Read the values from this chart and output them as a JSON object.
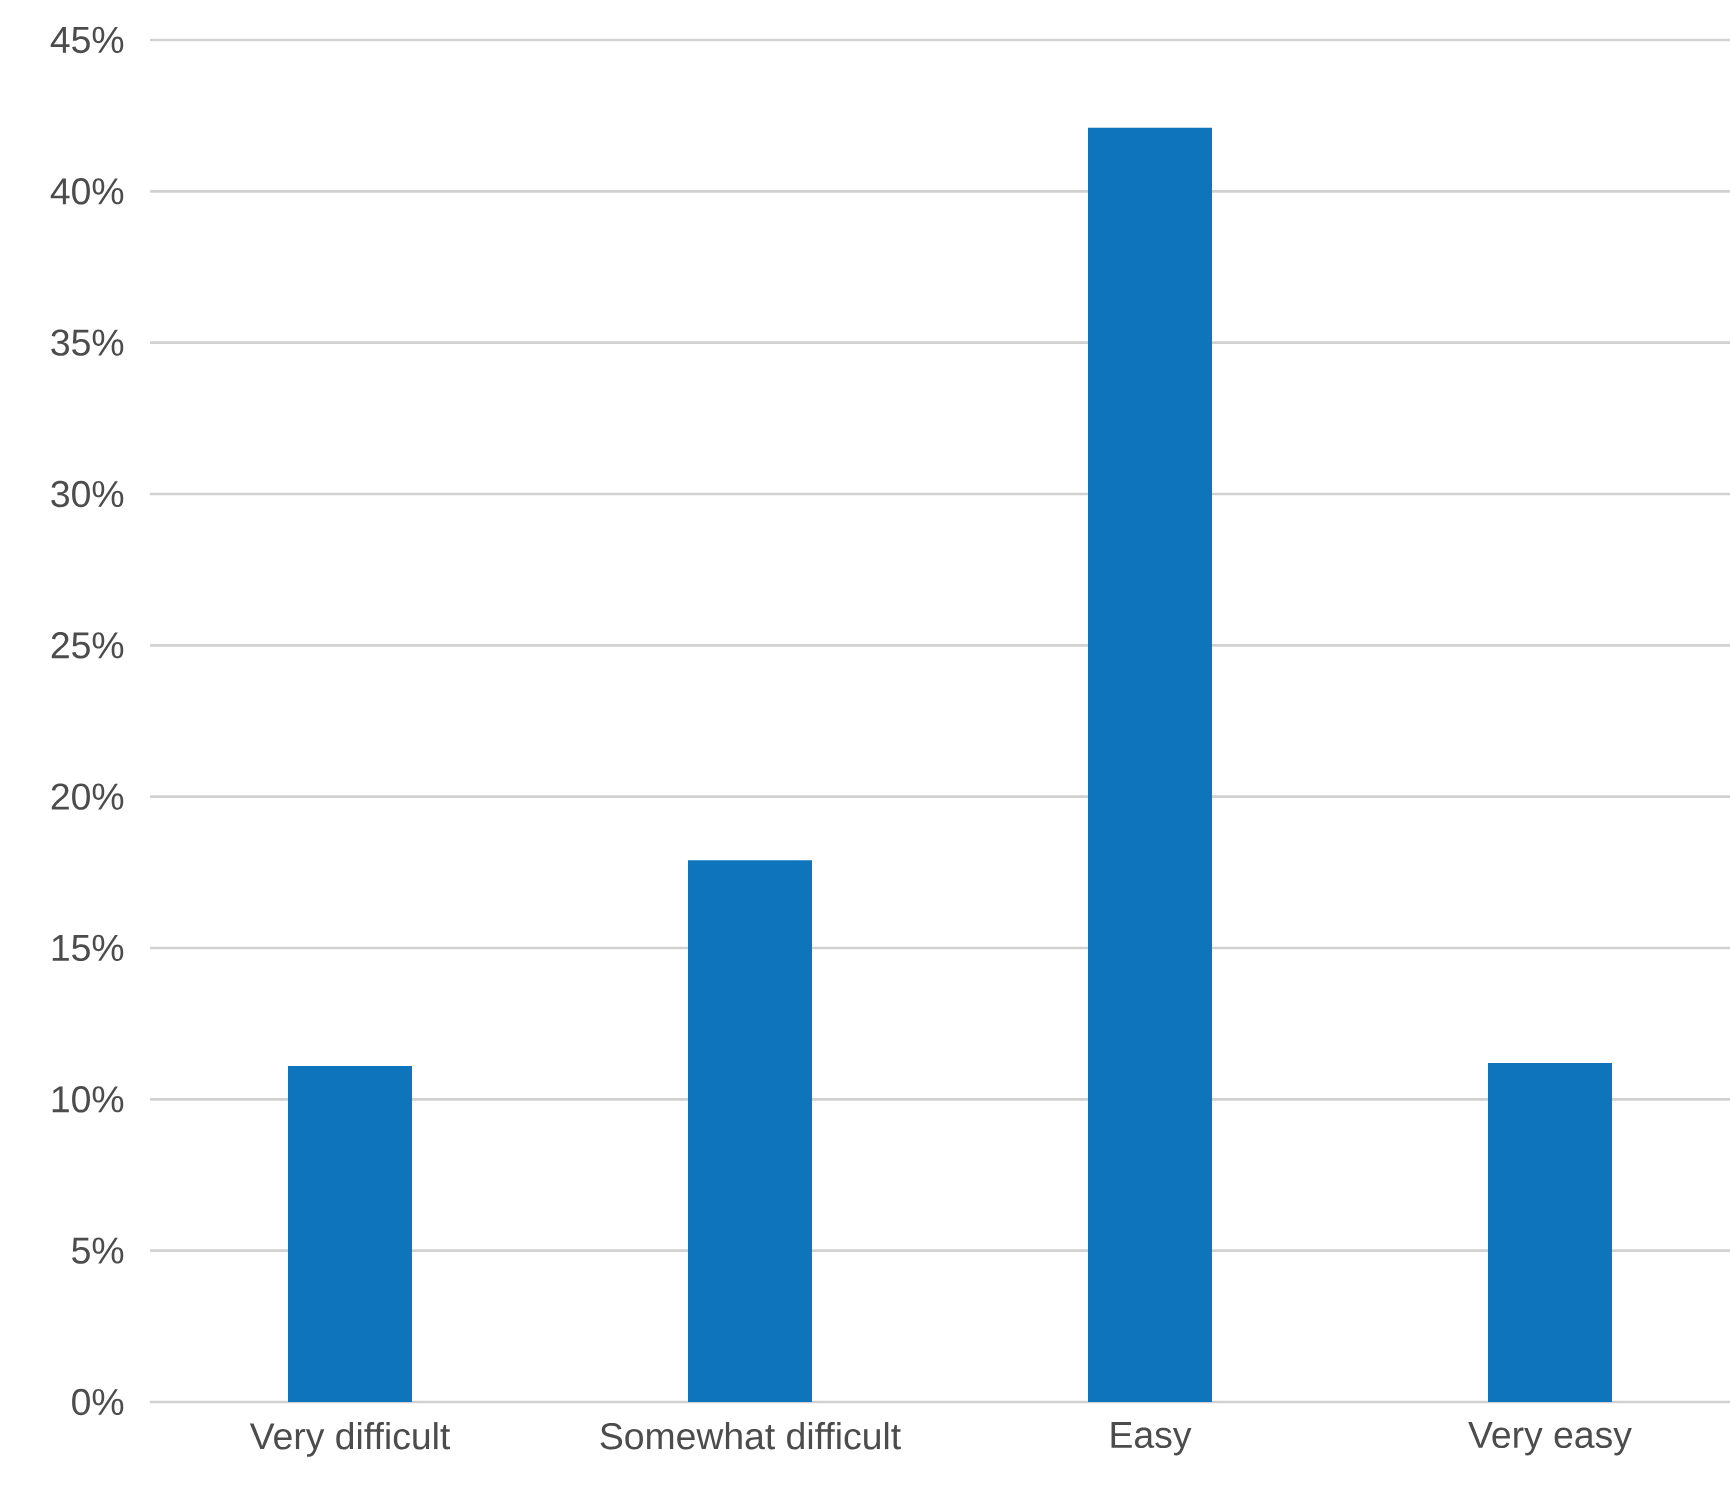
{
  "chart_data": {
    "type": "bar",
    "categories": [
      "Very difficult",
      "Somewhat difficult",
      "Easy",
      "Very easy"
    ],
    "values": [
      11.1,
      17.9,
      42.1,
      11.2
    ],
    "color": "#0e75bd",
    "ylim": [
      0,
      45
    ],
    "yticks": [
      {
        "value": 0,
        "label": "0%"
      },
      {
        "value": 5,
        "label": "5%"
      },
      {
        "value": 10,
        "label": "10%"
      },
      {
        "value": 15,
        "label": "15%"
      },
      {
        "value": 20,
        "label": "20%"
      },
      {
        "value": 25,
        "label": "25%"
      },
      {
        "value": 30,
        "label": "30%"
      },
      {
        "value": 35,
        "label": "35%"
      },
      {
        "value": 40,
        "label": "40%"
      },
      {
        "value": 45,
        "label": "45%"
      }
    ],
    "grid": "y"
  }
}
